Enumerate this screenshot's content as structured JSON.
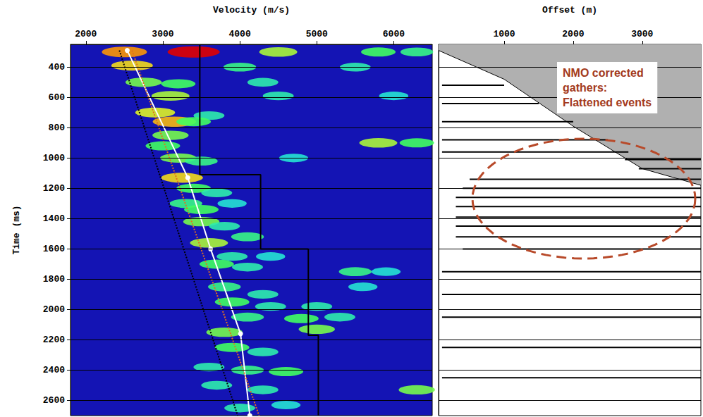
{
  "chart_data": [
    {
      "type": "scatter",
      "xlabel": "Velocity (m/s)",
      "ylabel": "Time (ms)",
      "xlim": [
        1800,
        6500
      ],
      "xticks": [
        2000,
        3000,
        4000,
        5000,
        6000
      ],
      "ylim": [
        250,
        2700
      ],
      "yticks": [
        400,
        600,
        800,
        1000,
        1200,
        1400,
        1600,
        1800,
        2000,
        2200,
        2400,
        2600
      ],
      "grid": true,
      "series": [
        {
          "type": "scatter",
          "marker": "circle",
          "value_range": [
            0,
            1
          ],
          "values": [
            [
              3400,
              300,
              1.0
            ],
            [
              2500,
              300,
              0.8
            ],
            [
              4500,
              300,
              0.6
            ],
            [
              5800,
              300,
              0.5
            ],
            [
              6300,
              300,
              0.45
            ],
            [
              2600,
              390,
              0.7
            ],
            [
              4000,
              400,
              0.45
            ],
            [
              5500,
              400,
              0.4
            ],
            [
              2750,
              500,
              0.55
            ],
            [
              3200,
              510,
              0.5
            ],
            [
              4300,
              500,
              0.4
            ],
            [
              3100,
              590,
              0.6
            ],
            [
              4500,
              590,
              0.4
            ],
            [
              6000,
              590,
              0.35
            ],
            [
              2900,
              700,
              0.65
            ],
            [
              3600,
              720,
              0.4
            ],
            [
              3150,
              760,
              0.75
            ],
            [
              3400,
              760,
              0.5
            ],
            [
              3100,
              850,
              0.55
            ],
            [
              3000,
              920,
              0.5
            ],
            [
              5800,
              900,
              0.6
            ],
            [
              6300,
              900,
              0.5
            ],
            [
              3200,
              1000,
              0.55
            ],
            [
              3500,
              1020,
              0.45
            ],
            [
              4700,
              1000,
              0.35
            ],
            [
              3250,
              1130,
              0.7
            ],
            [
              3400,
              1200,
              0.5
            ],
            [
              3700,
              1230,
              0.4
            ],
            [
              3300,
              1300,
              0.45
            ],
            [
              3500,
              1340,
              0.5
            ],
            [
              3900,
              1300,
              0.35
            ],
            [
              3500,
              1420,
              0.55
            ],
            [
              3800,
              1450,
              0.4
            ],
            [
              3600,
              1560,
              0.6
            ],
            [
              4100,
              1520,
              0.45
            ],
            [
              3900,
              1650,
              0.4
            ],
            [
              3700,
              1700,
              0.5
            ],
            [
              4100,
              1720,
              0.4
            ],
            [
              4400,
              1650,
              0.35
            ],
            [
              5500,
              1750,
              0.45
            ],
            [
              5900,
              1750,
              0.35
            ],
            [
              3800,
              1850,
              0.45
            ],
            [
              4300,
              1900,
              0.4
            ],
            [
              5600,
              1850,
              0.35
            ],
            [
              3900,
              1950,
              0.5
            ],
            [
              4400,
              1980,
              0.4
            ],
            [
              5000,
              1980,
              0.4
            ],
            [
              4100,
              2050,
              0.45
            ],
            [
              4800,
              2060,
              0.5
            ],
            [
              5300,
              2050,
              0.4
            ],
            [
              3800,
              2150,
              0.55
            ],
            [
              5000,
              2130,
              0.55
            ],
            [
              3900,
              2250,
              0.5
            ],
            [
              4300,
              2280,
              0.4
            ],
            [
              4100,
              2400,
              0.45
            ],
            [
              4600,
              2410,
              0.5
            ],
            [
              3600,
              2380,
              0.4
            ],
            [
              3700,
              2500,
              0.4
            ],
            [
              4300,
              2530,
              0.4
            ],
            [
              6300,
              2530,
              0.55
            ],
            [
              4000,
              2650,
              0.4
            ],
            [
              4600,
              2630,
              0.35
            ]
          ]
        },
        {
          "type": "line",
          "color": "#ffffff",
          "marker": "circle",
          "line_style": "solid",
          "values": [
            [
              2537,
              290
            ],
            [
              3324,
              1130
            ],
            [
              3620,
              1600
            ],
            [
              4009,
              2160
            ],
            [
              4130,
              2700
            ]
          ]
        },
        {
          "type": "line",
          "color": "#000000",
          "line_style": "dotted",
          "values": [
            [
              2435,
              290
            ],
            [
              3972,
              2700
            ]
          ]
        },
        {
          "type": "line",
          "color": "#e07020",
          "line_style": "dotted",
          "values": [
            [
              2600,
              290
            ],
            [
              4250,
              2700
            ]
          ]
        },
        {
          "type": "line",
          "color": "#000000",
          "line_style": "solid",
          "values": [
            [
              3480,
              250
            ],
            [
              3480,
              1110
            ],
            [
              4270,
              1110
            ],
            [
              4270,
              1600
            ],
            [
              4890,
              1600
            ],
            [
              4890,
              2170
            ],
            [
              5020,
              2170
            ],
            [
              5020,
              2700
            ]
          ]
        }
      ]
    },
    {
      "type": "line",
      "xlabel": "Offset (m)",
      "xlim": [
        50,
        3850
      ],
      "xticks": [
        1000,
        2000,
        3000
      ],
      "ylim": [
        250,
        2700
      ],
      "yticks": [
        400,
        600,
        800,
        1000,
        1200,
        1400,
        1600,
        1800,
        2000,
        2200,
        2400,
        2600
      ],
      "grid": true,
      "tick_labels": "x",
      "annotation": [
        "NMO corrected",
        "gathers:",
        "Flattened events"
      ],
      "series": [
        {
          "type": "area",
          "color": "#b0b0b0",
          "values": [
            [
              50,
              290
            ],
            [
              1000,
              480
            ],
            [
              2000,
              790
            ],
            [
              3000,
              1070
            ],
            [
              3850,
              1180
            ]
          ]
        },
        {
          "type": "segments",
          "color": "#000000",
          "values": [
            [
              100,
              1000,
              520
            ],
            [
              100,
              1500,
              640
            ],
            [
              100,
              2000,
              760
            ],
            [
              100,
              2500,
              880
            ],
            [
              100,
              2800,
              960
            ],
            [
              2750,
              3850,
              1010
            ],
            [
              2950,
              3850,
              1070
            ],
            [
              500,
              3850,
              1140
            ],
            [
              400,
              3850,
              1200
            ],
            [
              300,
              3850,
              1260
            ],
            [
              300,
              3850,
              1320
            ],
            [
              300,
              3850,
              1390
            ],
            [
              300,
              3850,
              1450
            ],
            [
              300,
              3850,
              1520
            ],
            [
              400,
              3850,
              1600
            ],
            [
              100,
              3850,
              1750
            ],
            [
              100,
              3850,
              1900
            ],
            [
              100,
              3850,
              2050
            ],
            [
              100,
              3850,
              2250
            ],
            [
              100,
              3850,
              2450
            ]
          ]
        }
      ]
    }
  ]
}
